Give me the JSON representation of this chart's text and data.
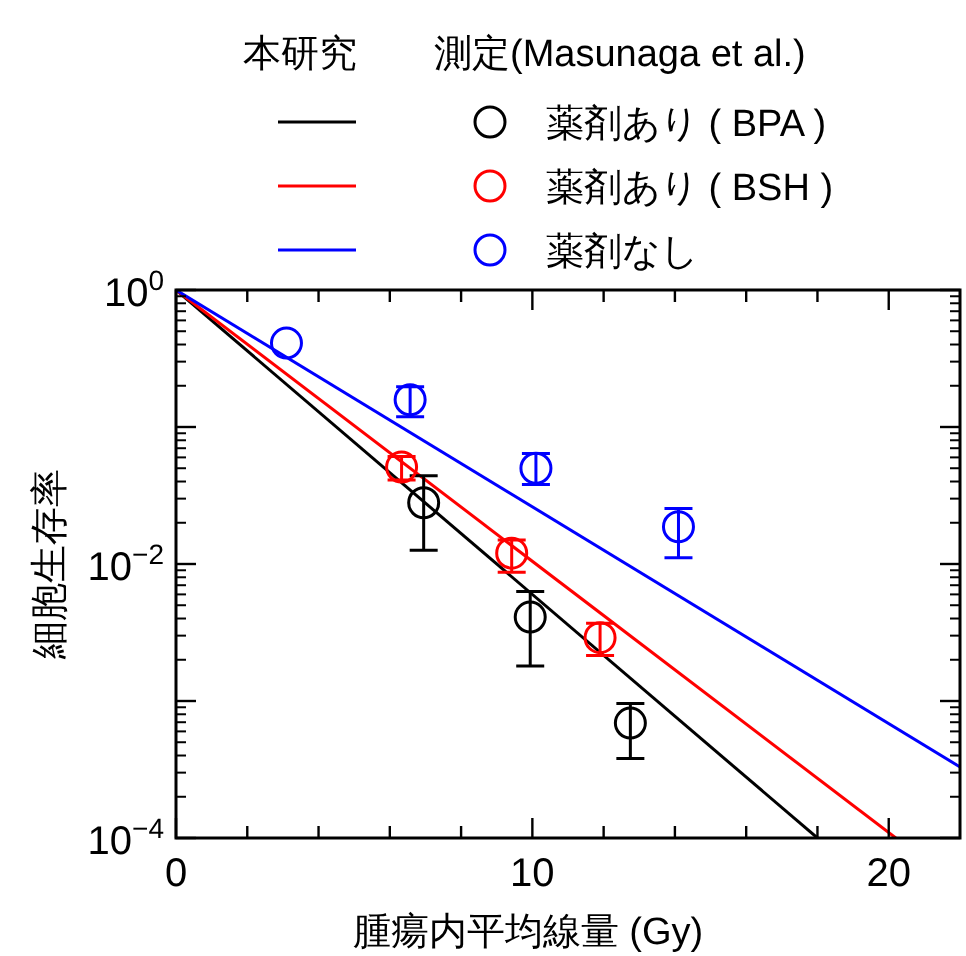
{
  "chart_data": {
    "type": "scatter",
    "xlabel": "腫瘍内平均線量 (Gy)",
    "ylabel": "細胞生存率",
    "log": "y",
    "grid": false,
    "legend": "top",
    "annotations": [
      "本研究",
      "測定(Masunaga et al.)"
    ],
    "xlim": [
      0,
      22
    ],
    "xticks": [
      0,
      {
        "value": 2,
        "label": null
      },
      {
        "value": 4,
        "label": null
      },
      {
        "value": 6,
        "label": null
      },
      {
        "value": 8,
        "label": null
      },
      10,
      {
        "value": 12,
        "label": null
      },
      {
        "value": 14,
        "label": null
      },
      {
        "value": 16,
        "label": null
      },
      {
        "value": 18,
        "label": null
      },
      20
    ],
    "ylim": [
      0.0001,
      1
    ],
    "yticks": [
      {
        "value": 1,
        "label": "10$^{0}$"
      },
      {
        "value": 0.1,
        "label": null
      },
      {
        "value": 0.01,
        "label": "10$^{−2}$"
      },
      {
        "value": 0.001,
        "label": null
      },
      {
        "value": 0.0001,
        "label": "10$^{−4}$"
      }
    ],
    "series": [
      {
        "type": "line",
        "color": "#000000",
        "line_style": "solid",
        "x": [
          0,
          18
        ],
        "values": [
          1,
          0.0001
        ]
      },
      {
        "type": "line",
        "color": "#ff0000",
        "line_style": "solid",
        "x": [
          0,
          20.2
        ],
        "values": [
          1,
          0.0001
        ]
      },
      {
        "type": "line",
        "color": "#0000ff",
        "line_style": "solid",
        "x": [
          0,
          22
        ],
        "values": [
          1,
          0.00033
        ]
      },
      {
        "name": "薬剤あり ( BPA )",
        "marker": "circle",
        "color": "#000000",
        "x": [
          6.95,
          9.94,
          12.75
        ],
        "values": [
          0.028,
          0.0041,
          0.00069
        ],
        "errors": [
          [
            0.0126,
            0.044
          ],
          [
            0.0018,
            0.0063
          ],
          [
            0.00038,
            0.00096
          ]
        ]
      },
      {
        "name": "薬剤あり ( BSH )",
        "marker": "circle",
        "color": "#ff0000",
        "x": [
          6.33,
          9.42,
          11.9
        ],
        "values": [
          0.051,
          0.012,
          0.0029
        ],
        "errors": [
          [
            0.041,
            0.061
          ],
          [
            0.0087,
            0.015
          ],
          [
            0.00215,
            0.0037
          ]
        ]
      },
      {
        "name": "薬剤なし",
        "marker": "circle",
        "color": "#0000ff",
        "x": [
          3.1,
          6.57,
          10.1,
          14.1
        ],
        "values": [
          0.41,
          0.158,
          0.05,
          0.0187
        ],
        "errors": [
          null,
          [
            0.119,
            0.197
          ],
          [
            0.038,
            0.064
          ],
          [
            0.0111,
            0.0254
          ]
        ]
      }
    ]
  }
}
